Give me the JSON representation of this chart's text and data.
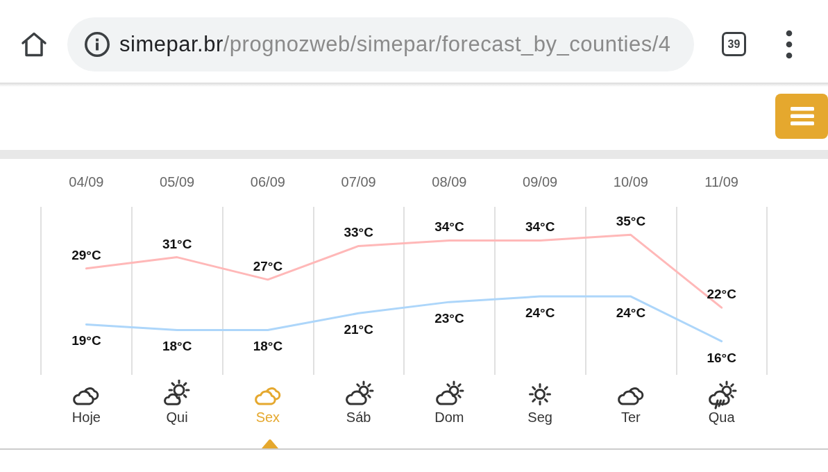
{
  "chart_data": {
    "type": "line",
    "categories": [
      "Hoje",
      "Qui",
      "Sex",
      "Sáb",
      "Dom",
      "Seg",
      "Ter",
      "Qua"
    ],
    "ylim": [
      10,
      40
    ],
    "series": [
      {
        "color": "#ffb8b8",
        "values": [
          29,
          31,
          27,
          33,
          34,
          34,
          35,
          22
        ],
        "value_labels": [
          "29°C",
          "31°C",
          "27°C",
          "33°C",
          "34°C",
          "34°C",
          "35°C",
          "22°C"
        ]
      },
      {
        "color": "#add6fa",
        "values": [
          19,
          18,
          18,
          21,
          23,
          24,
          24,
          16
        ],
        "value_labels": [
          "19°C",
          "18°C",
          "18°C",
          "21°C",
          "23°C",
          "24°C",
          "24°C",
          "16°C"
        ]
      }
    ],
    "grid": "x",
    "marker": "none",
    "line_style": "solid",
    "tick_labels": "x",
    "annotations": [
      "simepar.br/prognozweb/simepar/forecast_by_counties/4",
      "39",
      "04/09",
      "05/09",
      "06/09",
      "07/09",
      "08/09",
      "09/09",
      "10/09",
      "11/09"
    ]
  }
}
